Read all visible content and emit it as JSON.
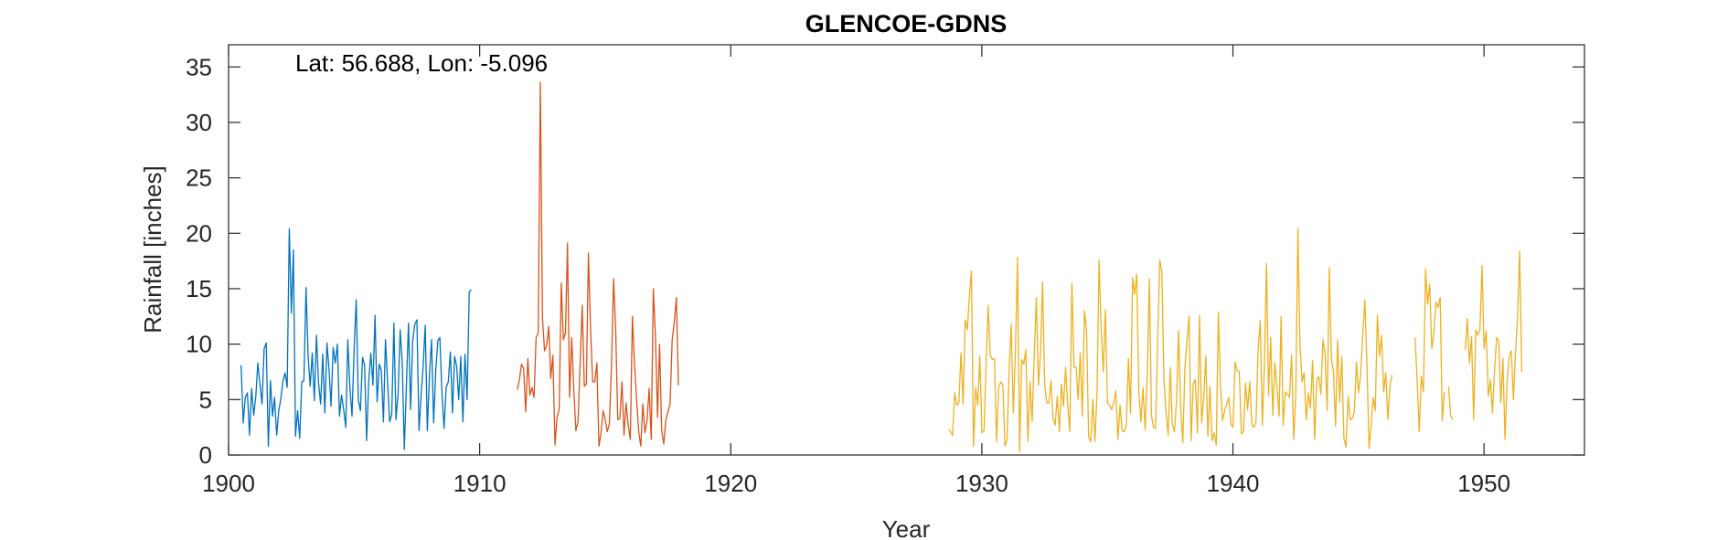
{
  "chart_data": {
    "type": "line",
    "title": "GLENCOE-GDNS",
    "xlabel": "Year",
    "ylabel": "Rainfall [inches]",
    "annotation": "Lat: 56.688, Lon: -5.096",
    "xlim": [
      1900,
      1954
    ],
    "ylim": [
      0,
      37
    ],
    "xticks": [
      1900,
      1910,
      1920,
      1930,
      1940,
      1950
    ],
    "yticks": [
      0,
      5,
      10,
      15,
      20,
      25,
      30,
      35
    ],
    "grid": false,
    "series": [
      {
        "color": "#0072BD",
        "x_start": 1900.5,
        "step": 0.0833333,
        "values": [
          8.1,
          2.9,
          5.2,
          5.6,
          1.8,
          6.0,
          3.6,
          5.3,
          8.3,
          6.4,
          4.6,
          9.6,
          10.1,
          0.8,
          6.7,
          3.5,
          5.2,
          1.8,
          4.0,
          5.1,
          6.7,
          7.4,
          6.1,
          20.4,
          12.8,
          18.5,
          1.7,
          4.0,
          1.5,
          6.6,
          6.7,
          15.1,
          8.9,
          6.2,
          9.2,
          4.9,
          10.8,
          6.5,
          4.6,
          9.1,
          3.8,
          10.1,
          7.7,
          4.4,
          9.7,
          8.3,
          10.0,
          3.5,
          5.4,
          4.1,
          2.5,
          10.4,
          6.1,
          3.5,
          9.5,
          14.0,
          5.0,
          4.0,
          8.8,
          8.1,
          1.3,
          6.7,
          9.2,
          6.3,
          12.6,
          4.8,
          8.2,
          7.6,
          3.0,
          10.4,
          6.6,
          3.0,
          3.7,
          11.9,
          3.2,
          5.5,
          11.3,
          8.3,
          0.5,
          6.3,
          11.9,
          4.1,
          10.3,
          11.8,
          12.2,
          2.2,
          5.3,
          8.0,
          11.7,
          2.2,
          7.2,
          10.4,
          2.9,
          7.6,
          10.3,
          10.6,
          5.6,
          2.4,
          6.1,
          6.6,
          9.3,
          3.8,
          8.9,
          8.0,
          5.0,
          8.9,
          3.0,
          9.1,
          5.0,
          14.7,
          14.9
        ]
      },
      {
        "color": "#D95319",
        "x_start": 1911.5,
        "step": 0.0833333,
        "values": [
          5.9,
          6.8,
          8.2,
          7.8,
          3.9,
          8.7,
          5.4,
          6.1,
          5.2,
          10.6,
          11.0,
          33.6,
          12.4,
          9.4,
          9.9,
          11.6,
          6.9,
          9.0,
          0.9,
          3.4,
          4.1,
          15.5,
          10.4,
          11.0,
          19.1,
          5.2,
          10.6,
          5.9,
          2.2,
          3.0,
          8.2,
          13.5,
          6.2,
          6.4,
          18.2,
          11.5,
          6.6,
          6.6,
          8.3,
          0.8,
          2.0,
          4.0,
          3.2,
          2.1,
          2.8,
          8.0,
          15.9,
          11.3,
          3.2,
          3.3,
          6.6,
          1.8,
          4.7,
          2.7,
          1.4,
          12.5,
          8.2,
          5.0,
          2.1,
          0.8,
          4.6,
          2.0,
          3.1,
          6.0,
          1.4,
          15.0,
          10.7,
          3.4,
          10.0,
          2.2,
          1.0,
          3.2,
          3.9,
          4.6,
          10.4,
          12.0,
          14.2,
          6.3
        ]
      },
      {
        "color": "#EDB120",
        "x_start": 1928.67,
        "step": 0.0833333,
        "values": [
          2.3,
          2.1,
          1.8,
          5.6,
          4.5,
          4.7,
          9.2,
          4.6,
          12.2,
          11.3,
          14.2,
          16.6,
          0.8,
          6.1,
          4.5,
          8.9,
          2.0,
          2.2,
          8.4,
          13.5,
          9.0,
          8.6,
          8.7,
          1.2,
          6.1,
          6.6,
          6.3,
          0.8,
          1.3,
          7.5,
          11.8,
          3.8,
          9.2,
          17.8,
          0.3,
          8.6,
          8.2,
          9.5,
          1.2,
          6.6,
          3.0,
          9.0,
          14.2,
          6.3,
          9.4,
          15.6,
          6.4,
          4.7,
          4.7,
          6.7,
          3.3,
          2.7,
          5.3,
          2.1,
          6.4,
          4.4,
          7.9,
          4.5,
          2.1,
          15.5,
          7.9,
          7.9,
          5.0,
          9.2,
          3.5,
          13.0,
          11.3,
          1.6,
          1.2,
          5.0,
          1.2,
          5.6,
          17.6,
          11.3,
          7.5,
          13.1,
          4.7,
          4.5,
          4.1,
          4.7,
          5.8,
          1.4,
          4.5,
          2.2,
          2.1,
          2.6,
          8.7,
          3.8,
          16.0,
          14.5,
          16.3,
          5.7,
          3.0,
          6.1,
          2.3,
          7.2,
          15.9,
          3.6,
          2.5,
          2.4,
          10.2,
          17.6,
          16.5,
          6.7,
          3.8,
          1.8,
          7.9,
          2.8,
          2.1,
          4.8,
          11.2,
          4.2,
          1.1,
          7.9,
          10.3,
          12.5,
          1.3,
          6.4,
          6.8,
          2.0,
          12.6,
          2.9,
          5.2,
          8.9,
          1.7,
          6.2,
          1.3,
          2.0,
          0.9,
          12.9,
          6.2,
          3.1,
          4.0,
          4.6,
          5.2,
          2.8,
          2.5,
          8.4,
          7.6,
          7.5,
          1.9,
          2.1,
          6.5,
          4.1,
          6.6,
          2.8,
          2.5,
          3.0,
          9.6,
          12.1,
          2.7,
          7.9,
          17.3,
          5.4,
          10.6,
          3.6,
          8.3,
          6.1,
          3.5,
          12.5,
          2.7,
          5.7,
          5.5,
          5.2,
          9.0,
          1.4,
          5.6,
          20.4,
          10.0,
          6.6,
          7.4,
          3.2,
          5.6,
          4.2,
          8.5,
          1.4,
          6.7,
          7.1,
          5.5,
          10.4,
          9.1,
          4.0,
          16.9,
          8.7,
          7.5,
          2.6,
          10.4,
          4.8,
          8.9,
          1.5,
          0.7,
          5.3,
          3.2,
          3.3,
          3.9,
          8.4,
          5.6,
          7.2,
          10.9,
          14.0,
          8.2,
          0.6,
          2.7,
          5.2,
          4.0,
          12.6,
          8.9,
          10.8,
          5.7,
          7.4,
          3.2,
          6.2,
          7.2,
          null,
          null,
          null,
          null,
          null,
          null,
          null,
          null,
          null,
          null,
          10.6,
          6.8,
          2.1,
          7.1,
          5.7,
          16.8,
          13.6,
          15.4,
          9.6,
          11.0,
          13.8,
          13.3,
          14.2,
          3.1,
          5.7,
          null,
          6.2,
          3.6,
          3.2,
          null,
          null,
          null,
          null,
          null,
          9.5,
          12.3,
          8.3,
          10.7,
          3.2,
          11.3,
          10.8,
          11.3,
          17.1,
          9.6,
          11.2,
          5.3,
          6.8,
          3.8,
          7.7,
          10.6,
          10.3,
          4.7,
          8.7,
          1.4,
          6.6,
          8.9,
          9.4,
          5.0,
          9.2,
          12.5,
          18.4,
          7.5
        ]
      }
    ]
  }
}
